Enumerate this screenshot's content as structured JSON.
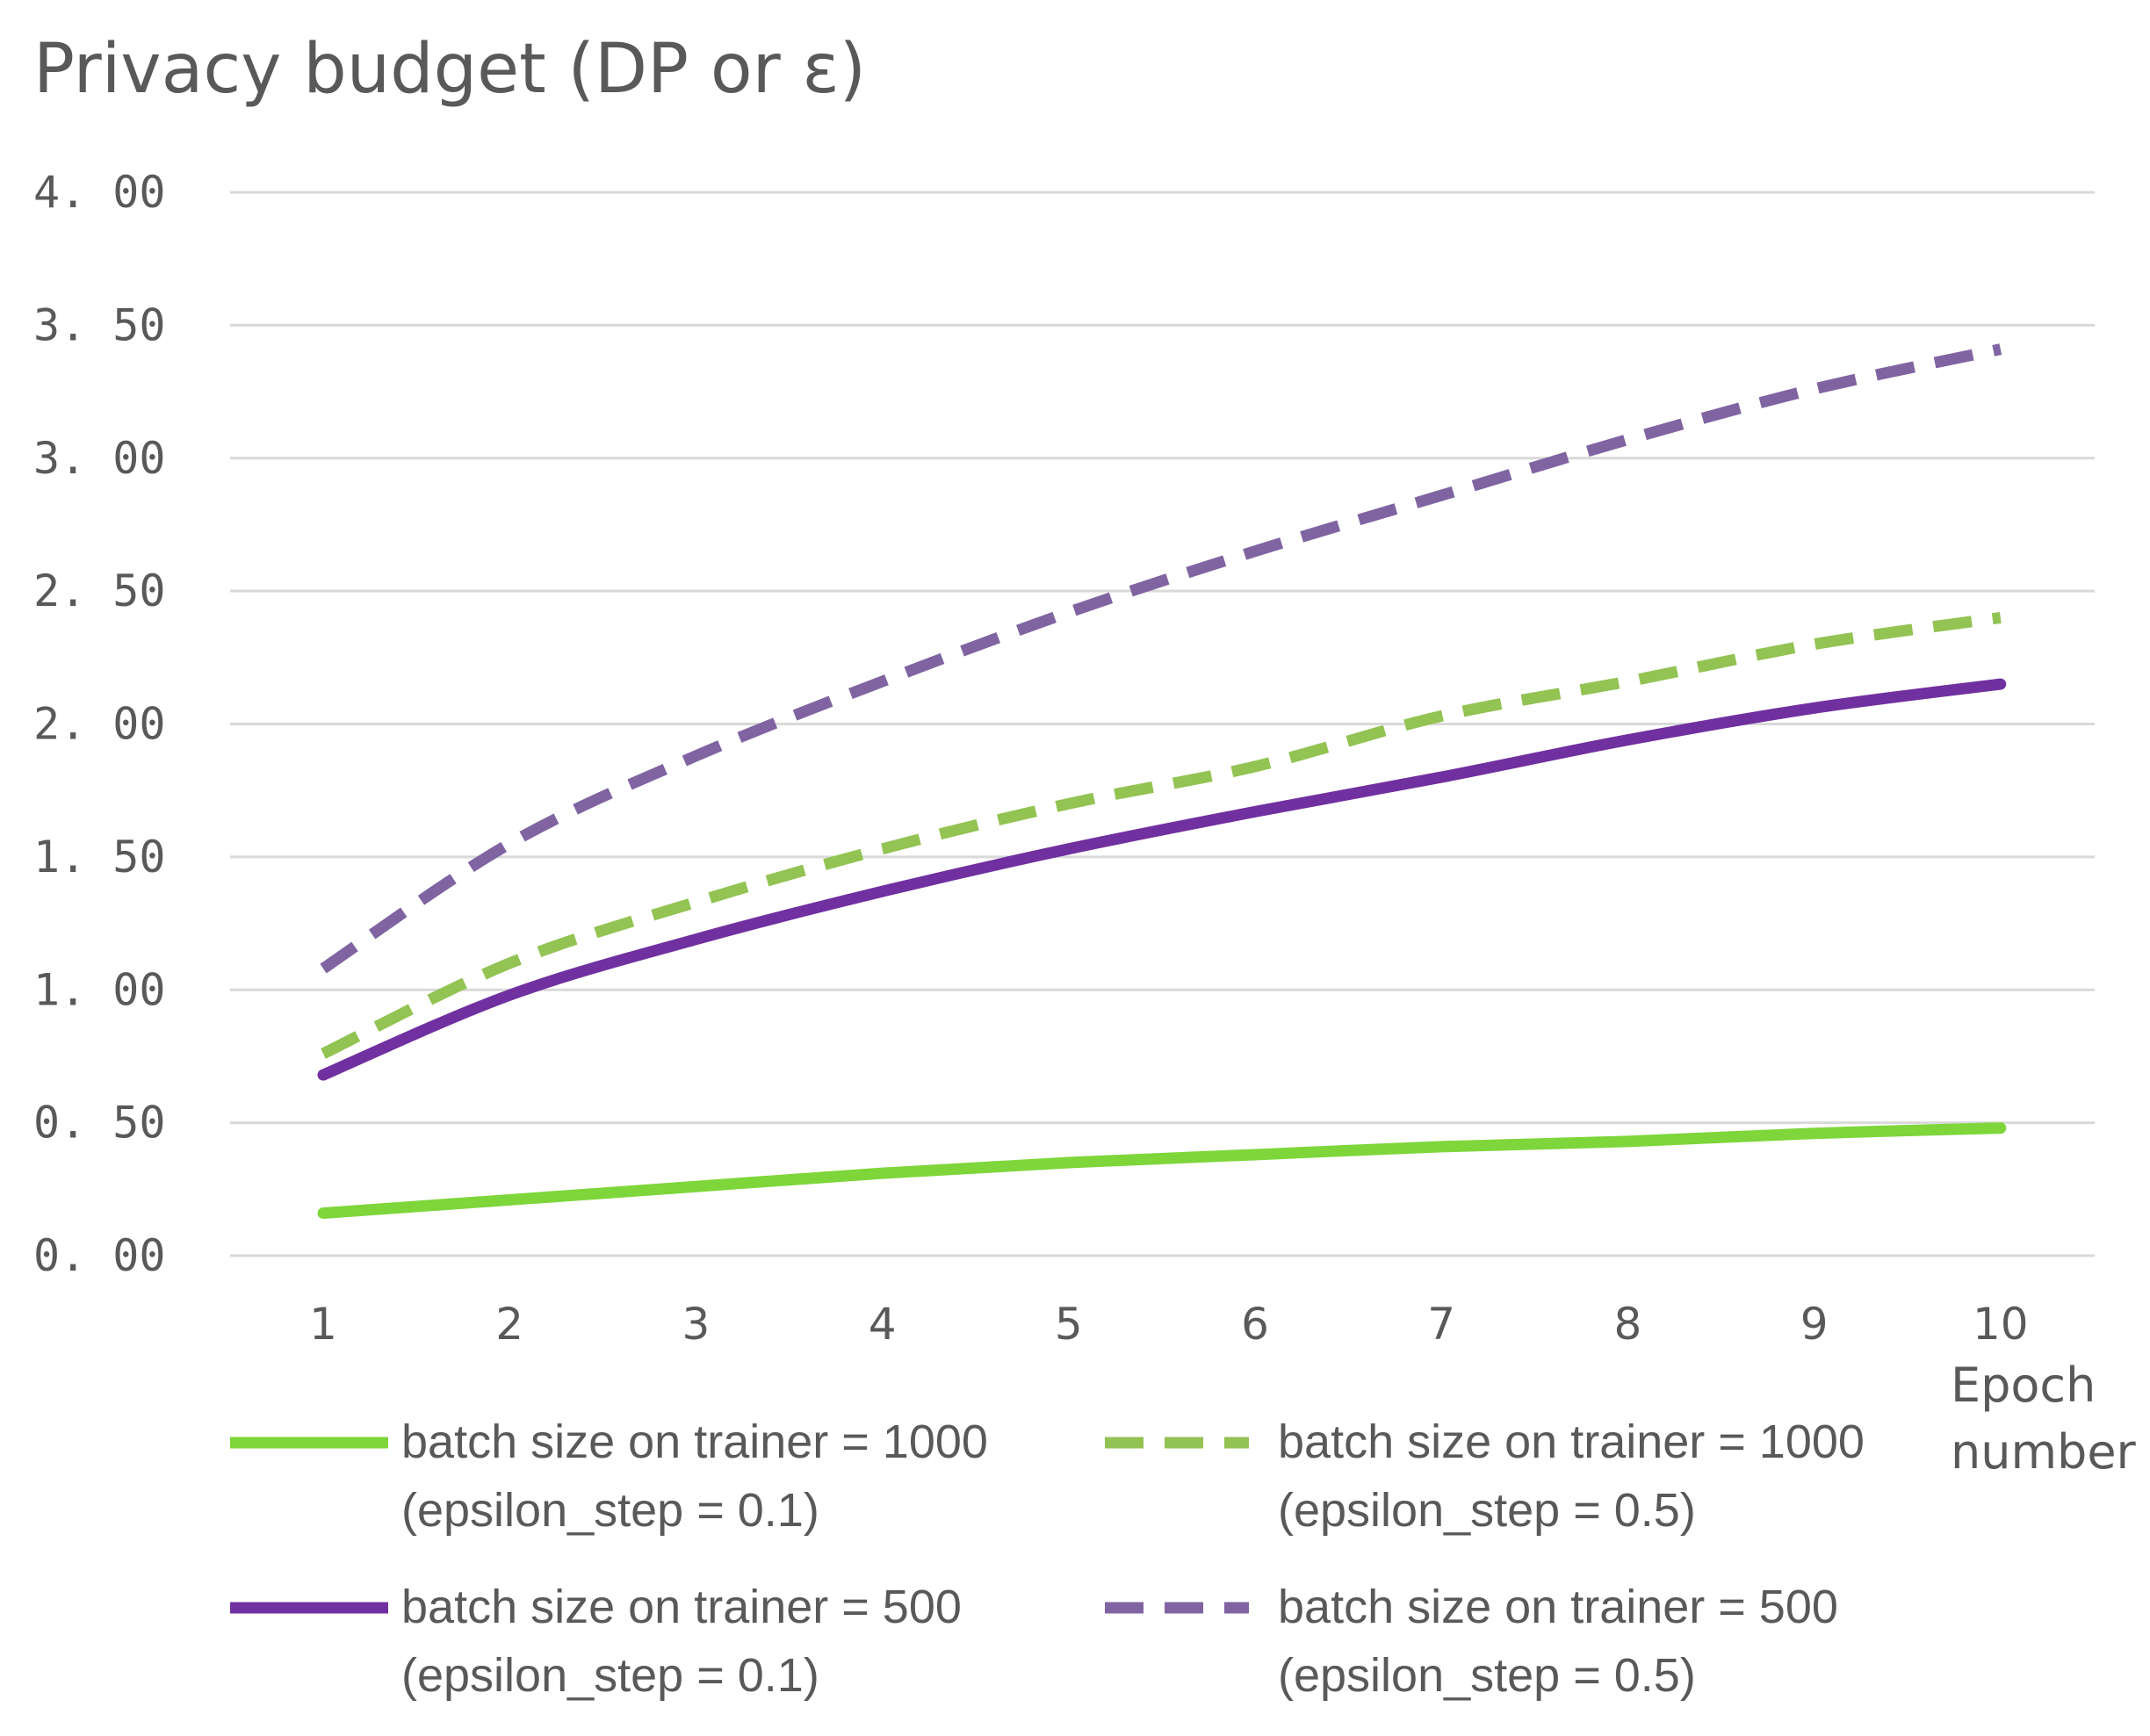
{
  "chart_data": {
    "type": "line",
    "title": "Privacy budget (DP or  ε)",
    "xlabel": [
      "Epoch",
      "number"
    ],
    "ylabel": "",
    "categories": [
      "1",
      "2",
      "3",
      "4",
      "5",
      "6",
      "7",
      "8",
      "9",
      "10"
    ],
    "yticks": [
      "0. 00",
      "0. 50",
      "1. 00",
      "1. 50",
      "2. 00",
      "2. 50",
      "3. 00",
      "3. 50",
      "4. 00"
    ],
    "ylim": [
      0,
      4
    ],
    "grid": true,
    "legend_position": "bottom",
    "series": [
      {
        "name": "batch size on trainer = 1000 (epsilon_step = 0.1)",
        "legend_lines": [
          "batch size on trainer = 1000",
          "(epsilon_step = 0.1)"
        ],
        "color": "#7ed63a",
        "style": "solid",
        "values": [
          0.16,
          0.21,
          0.26,
          0.31,
          0.35,
          0.38,
          0.41,
          0.43,
          0.46,
          0.48
        ]
      },
      {
        "name": "batch size on trainer = 1000 (epsilon_step = 0.5)",
        "legend_lines": [
          "batch size on trainer = 1000",
          "(epsilon_step = 0.5)"
        ],
        "color": "#92c353",
        "style": "dashed",
        "values": [
          0.76,
          1.1,
          1.33,
          1.53,
          1.7,
          1.84,
          2.03,
          2.16,
          2.3,
          2.4
        ]
      },
      {
        "name": "batch size on trainer = 500 (epsilon_step = 0.1)",
        "legend_lines": [
          "batch size on trainer = 500",
          "(epsilon_step = 0.1)"
        ],
        "color": "#7030a0",
        "style": "solid",
        "values": [
          0.68,
          0.98,
          1.19,
          1.37,
          1.53,
          1.67,
          1.8,
          1.94,
          2.06,
          2.15
        ]
      },
      {
        "name": "batch size on trainer = 500 (epsilon_step = 0.5)",
        "legend_lines": [
          "batch size on trainer = 500",
          "(epsilon_step = 0.5)"
        ],
        "color": "#8064a2",
        "style": "dashed",
        "values": [
          1.08,
          1.55,
          1.88,
          2.16,
          2.42,
          2.65,
          2.86,
          3.07,
          3.26,
          3.41
        ]
      }
    ]
  }
}
